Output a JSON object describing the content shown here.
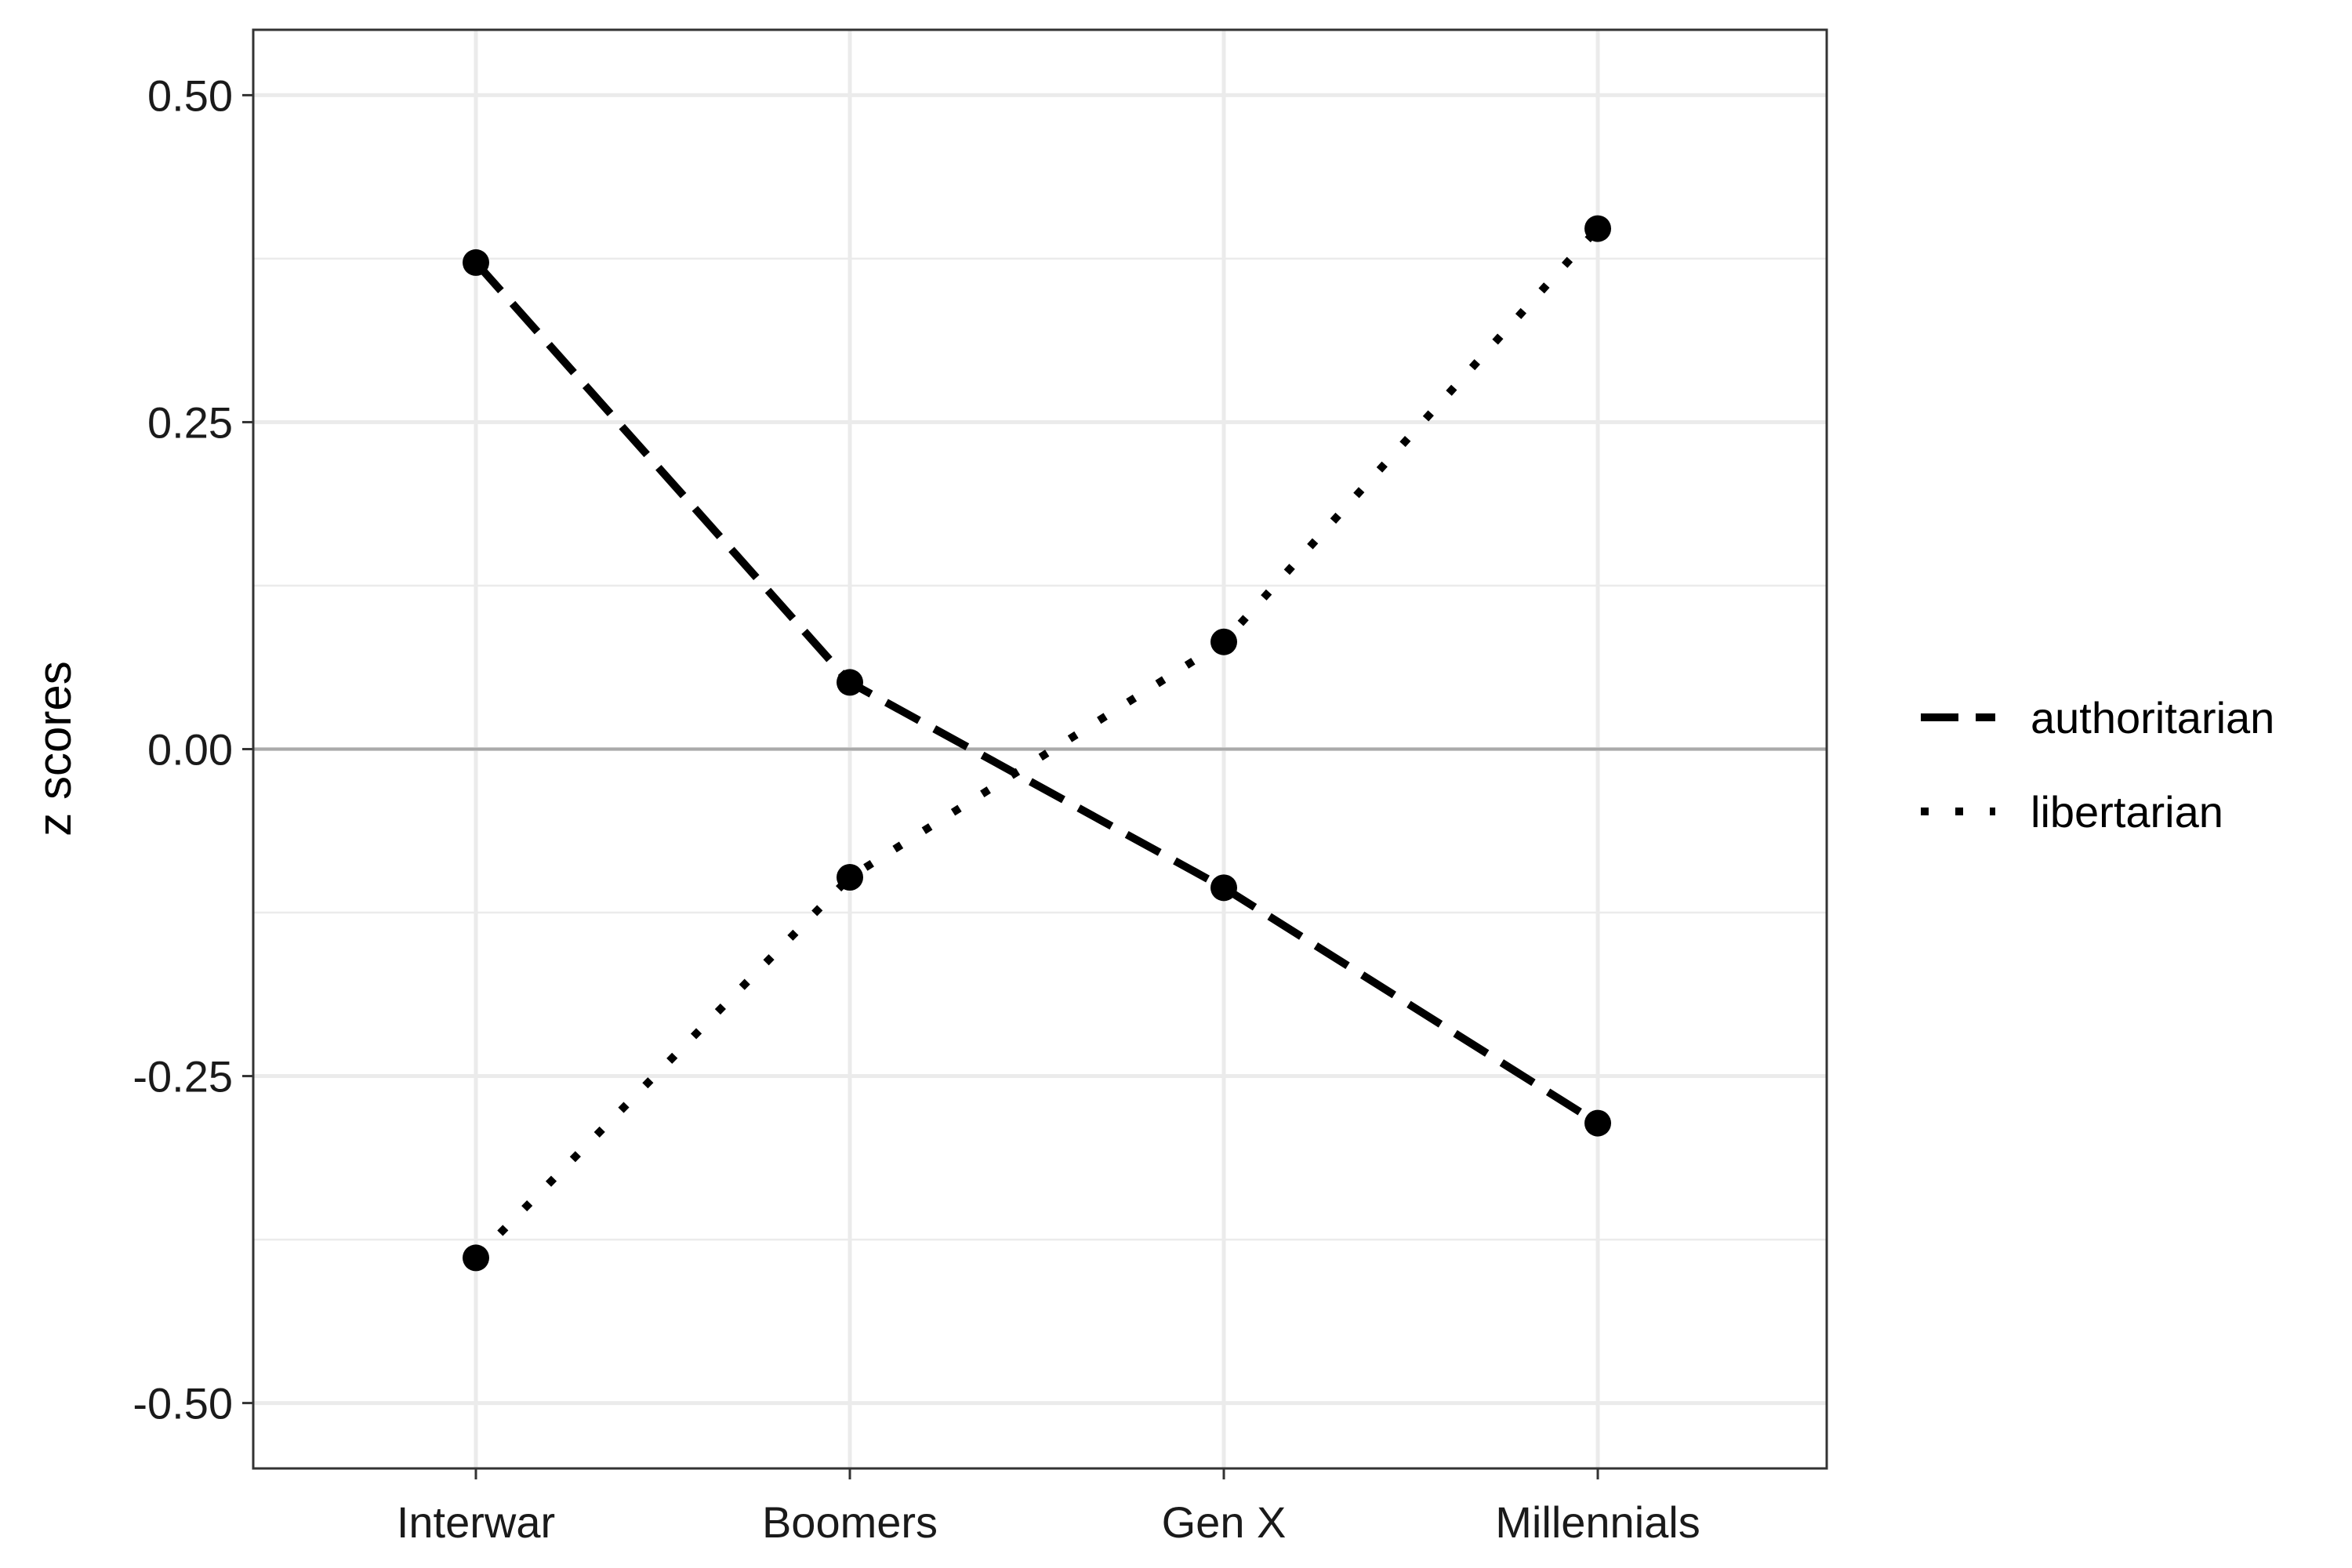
{
  "chart_data": {
    "type": "line",
    "categories": [
      "Interwar",
      "Boomers",
      "Gen X",
      "Millennials"
    ],
    "series": [
      {
        "name": "authoritarian",
        "line_style": "dashed",
        "values": [
          0.372,
          0.051,
          -0.106,
          -0.286
        ]
      },
      {
        "name": "libertarian",
        "line_style": "dotted",
        "values": [
          -0.389,
          -0.098,
          0.082,
          0.398
        ]
      }
    ],
    "title": "",
    "xlabel": "",
    "ylabel": "z scores",
    "ylim": [
      -0.55,
      0.55
    ],
    "yticks": [
      0.5,
      0.25,
      0.0,
      -0.25,
      -0.5
    ],
    "ytick_labels": [
      "0.50",
      "0.25",
      "0.00",
      "-0.25",
      "-0.50"
    ],
    "reference_line": 0,
    "grid": true,
    "legend_position": "right",
    "colors": {
      "line": "#000000",
      "grid": "#ebebeb",
      "reference": "#aaaaaa",
      "panel_border": "#333333",
      "background": "#ffffff"
    }
  }
}
